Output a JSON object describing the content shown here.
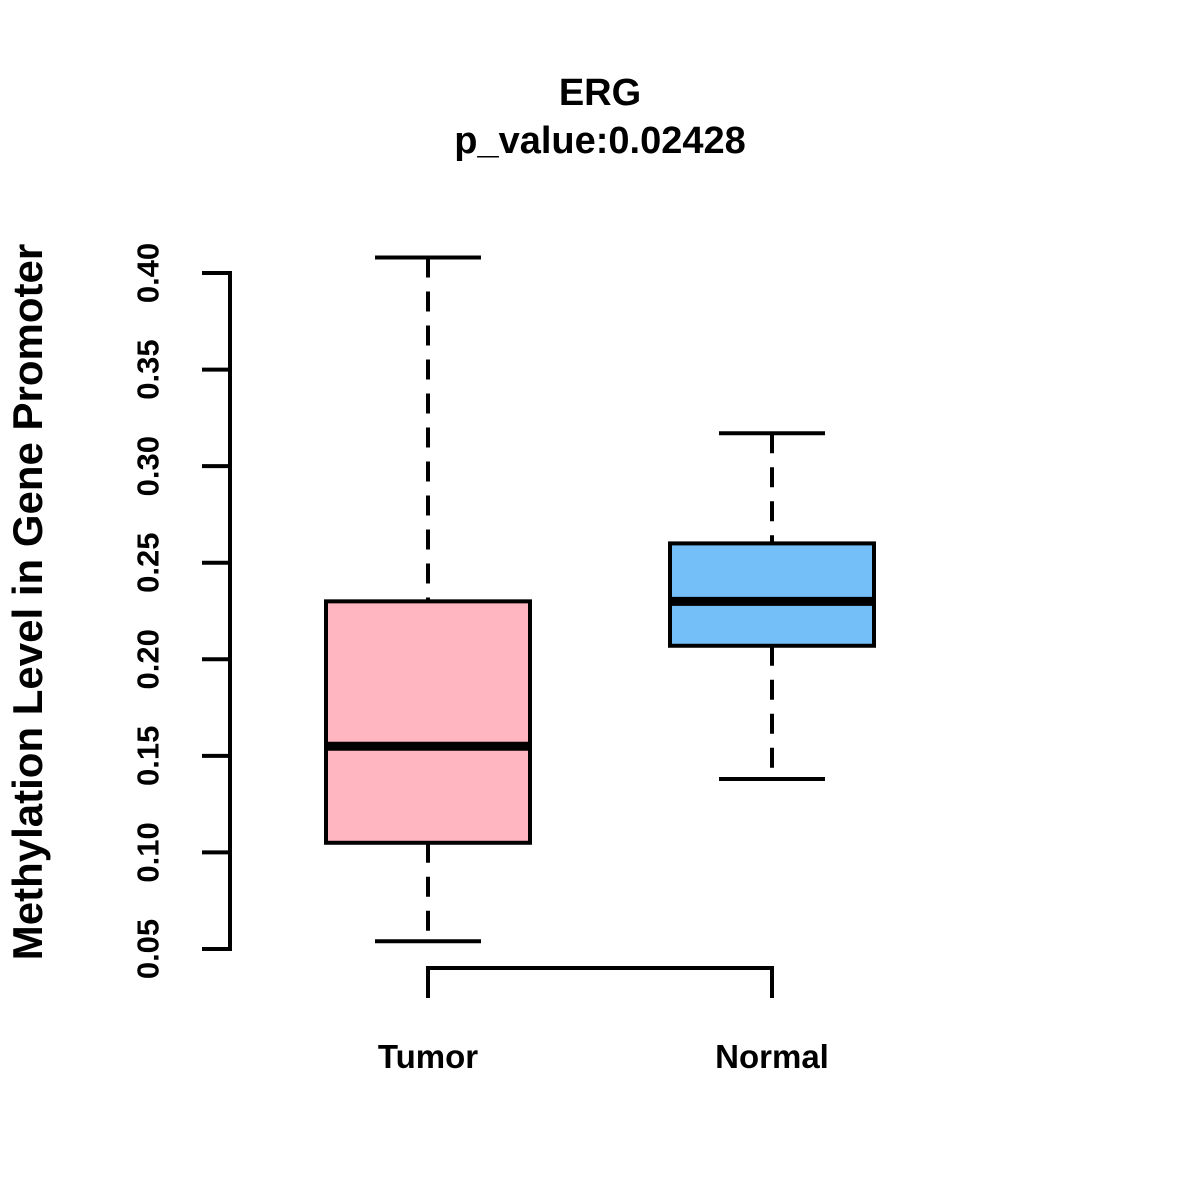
{
  "chart_data": {
    "type": "boxplot",
    "title": "ERG",
    "subtitle": "p_value:0.02428",
    "p_value": 0.02428,
    "ylabel": "Methylation Level in Gene Promoter",
    "xlabel": "",
    "categories": [
      "Tumor",
      "Normal"
    ],
    "series": [
      {
        "name": "Tumor",
        "min": 0.054,
        "q1": 0.105,
        "median": 0.155,
        "q3": 0.23,
        "max": 0.408,
        "fill": "#FFB6C1"
      },
      {
        "name": "Normal",
        "min": 0.138,
        "q1": 0.207,
        "median": 0.23,
        "q3": 0.26,
        "max": 0.317,
        "fill": "#74BFF8"
      }
    ],
    "y_ticks": [
      0.05,
      0.1,
      0.15,
      0.2,
      0.25,
      0.3,
      0.35,
      0.4
    ],
    "y_tick_format_decimals": 2,
    "ylim": [
      0.05,
      0.41
    ],
    "grid": false,
    "legend": false,
    "stroke_color": "#000000",
    "background_color": "#FFFFFF"
  }
}
